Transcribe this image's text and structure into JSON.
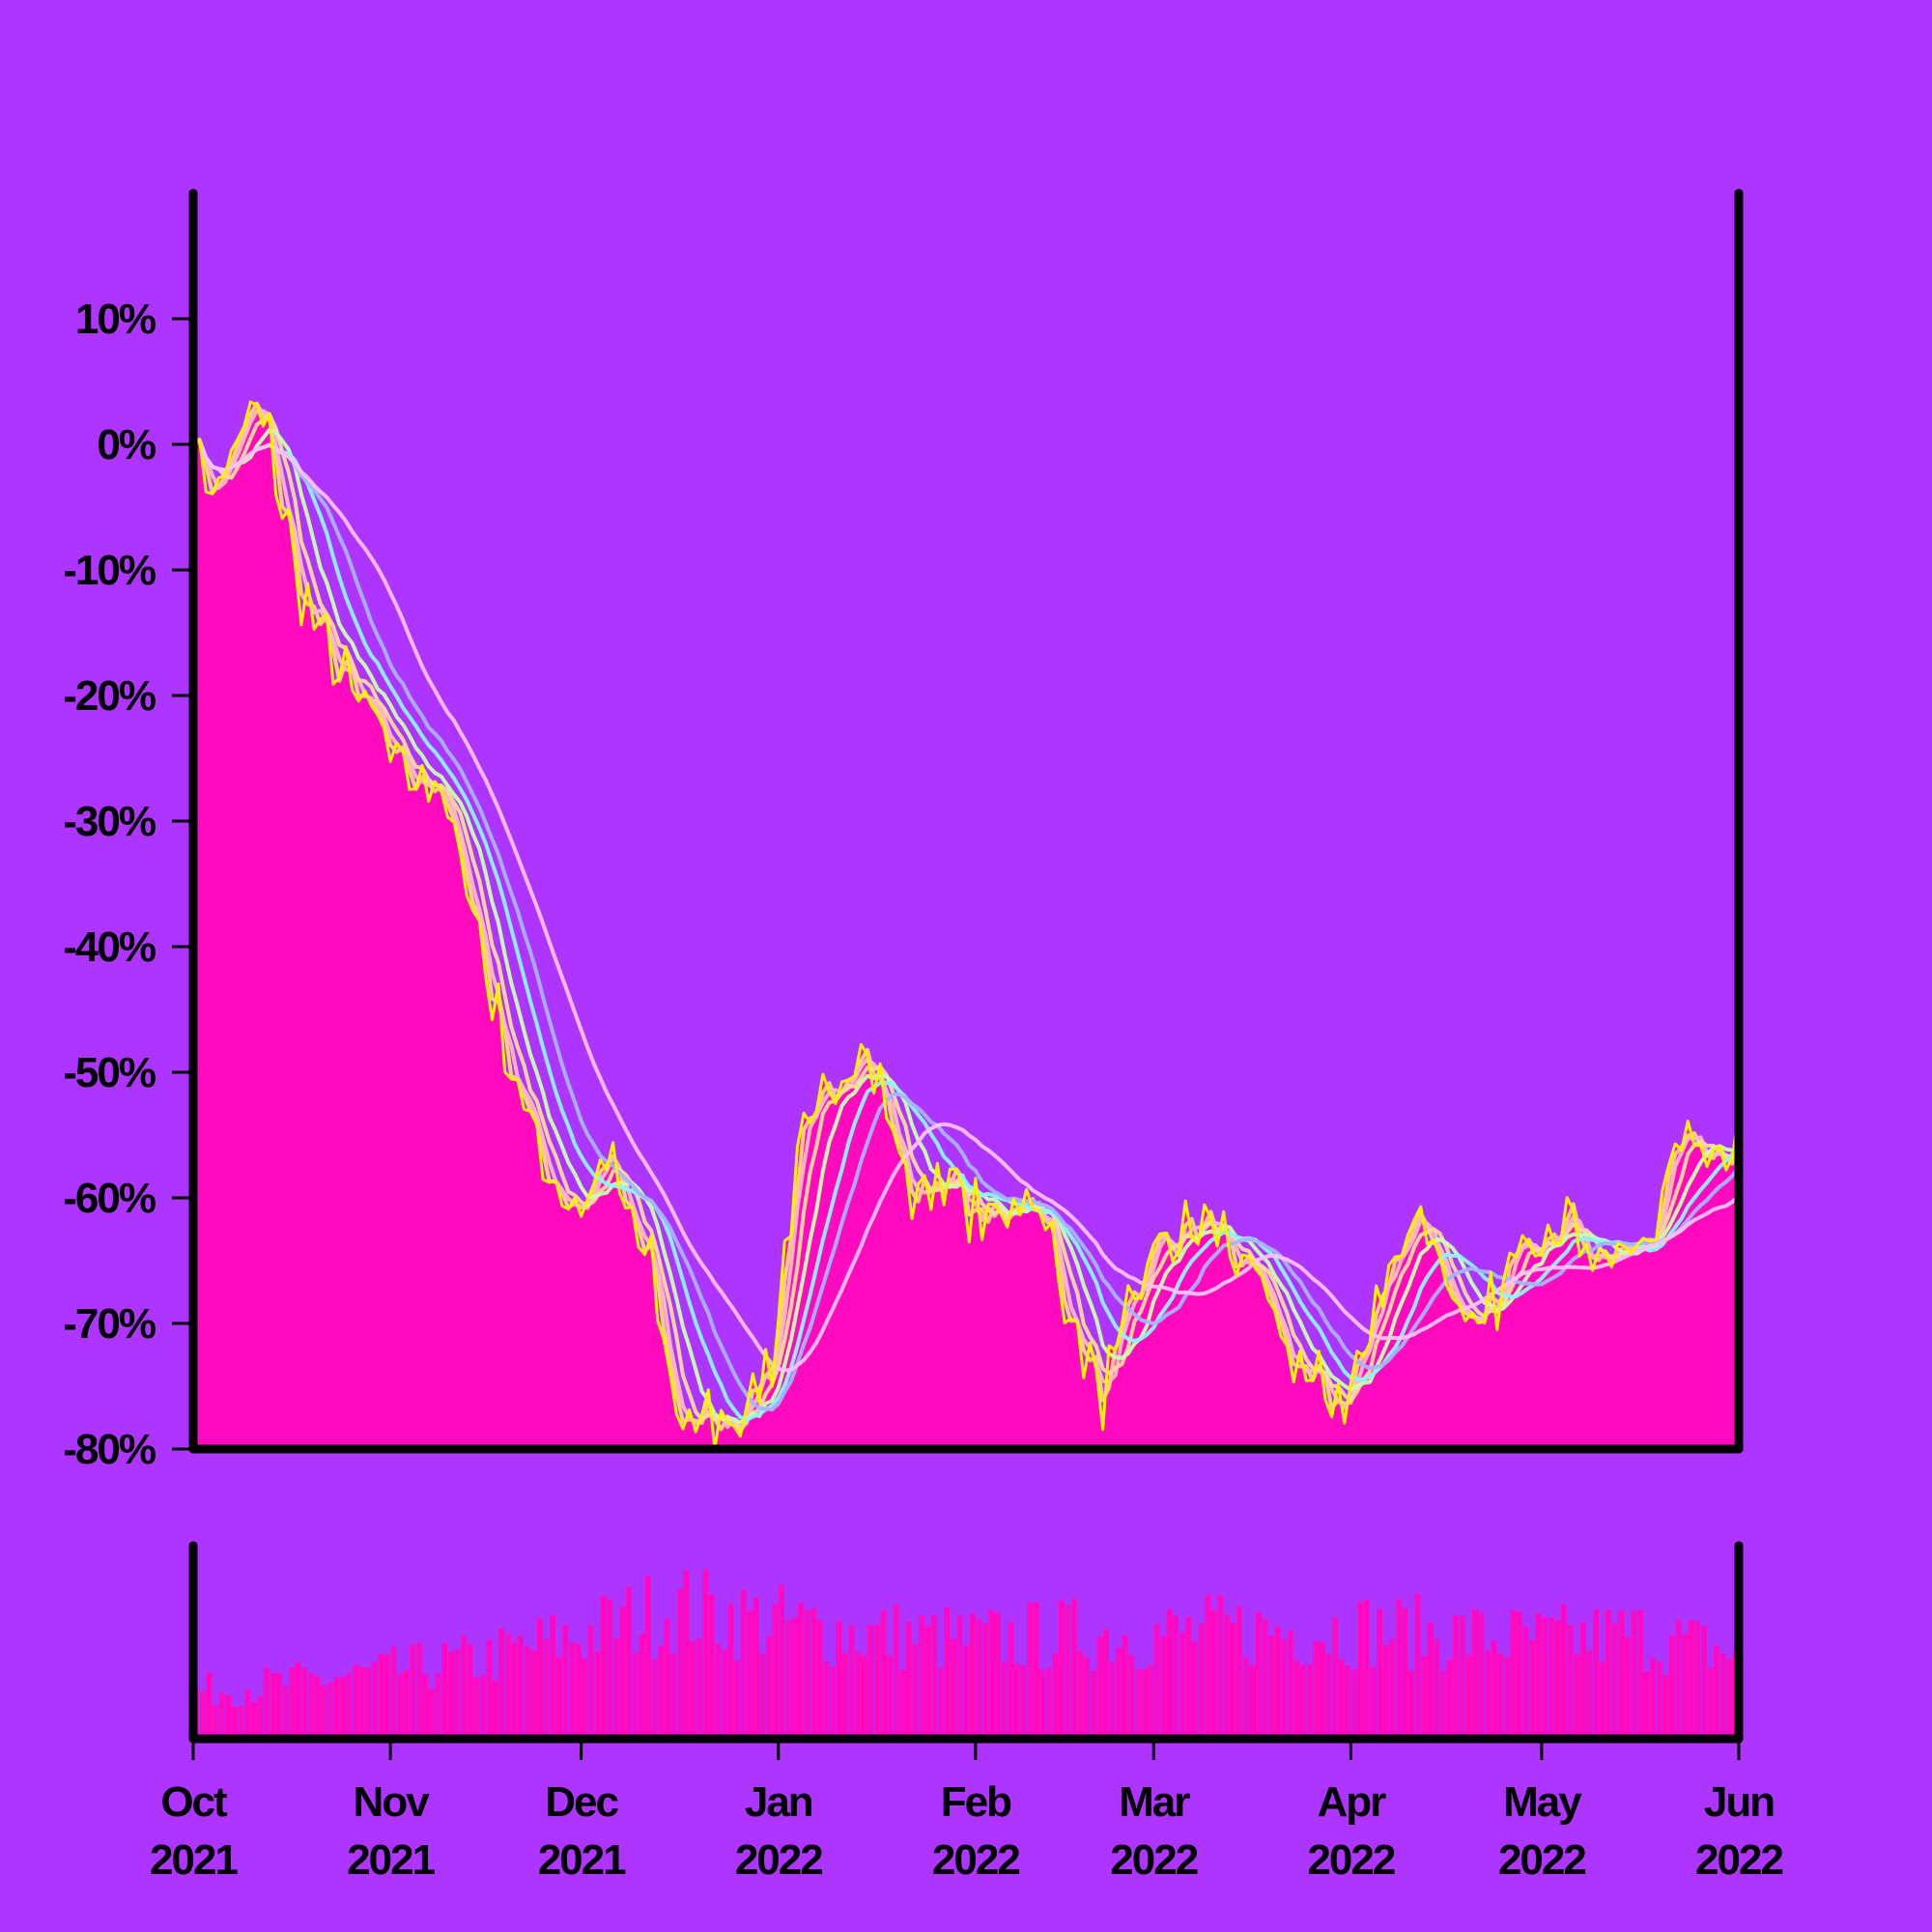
{
  "colors": {
    "background": "#AE34FF",
    "area_fill": "#FF0ABF",
    "volume_fill": "#FF0ABF",
    "axis": "#000000",
    "price_line": "#FFF200"
  },
  "chart_data": [
    {
      "type": "line",
      "title": "",
      "xlabel": "",
      "ylabel": "",
      "x_range": [
        "2021-10-01",
        "2022-06-01"
      ],
      "ylim": [
        -80,
        20
      ],
      "y_ticks": [
        10,
        0,
        -10,
        -20,
        -30,
        -40,
        -50,
        -60,
        -70,
        -80
      ],
      "y_tick_labels": [
        "10%",
        "0%",
        "-10%",
        "-20%",
        "-30%",
        "-40%",
        "-50%",
        "-60%",
        "-70%",
        "-80%"
      ],
      "grid": false,
      "legend": "none",
      "area_under_price": true,
      "price_anchors": [
        [
          "2021-10-01",
          1
        ],
        [
          "2021-10-04",
          -4
        ],
        [
          "2021-10-08",
          0
        ],
        [
          "2021-10-11",
          3
        ],
        [
          "2021-10-13",
          0
        ],
        [
          "2021-10-18",
          -12
        ],
        [
          "2021-10-25",
          -19
        ],
        [
          "2021-11-01",
          -24
        ],
        [
          "2021-11-07",
          -27
        ],
        [
          "2021-11-12",
          -32
        ],
        [
          "2021-11-17",
          -44
        ],
        [
          "2021-11-22",
          -53
        ],
        [
          "2021-11-27",
          -59
        ],
        [
          "2021-12-01",
          -61
        ],
        [
          "2021-12-05",
          -57
        ],
        [
          "2021-12-09",
          -62
        ],
        [
          "2021-12-12",
          -66
        ],
        [
          "2021-12-16",
          -77
        ],
        [
          "2021-12-21",
          -78
        ],
        [
          "2021-12-26",
          -77
        ],
        [
          "2021-12-31",
          -73
        ],
        [
          "2022-01-04",
          -57
        ],
        [
          "2022-01-09",
          -52
        ],
        [
          "2022-01-14",
          -47
        ],
        [
          "2022-01-18",
          -53
        ],
        [
          "2022-01-22",
          -60
        ],
        [
          "2022-01-27",
          -58
        ],
        [
          "2022-01-31",
          -61
        ],
        [
          "2022-02-04",
          -62
        ],
        [
          "2022-02-09",
          -59
        ],
        [
          "2022-02-13",
          -64
        ],
        [
          "2022-02-17",
          -71
        ],
        [
          "2022-02-21",
          -76
        ],
        [
          "2022-02-25",
          -70
        ],
        [
          "2022-03-01",
          -64
        ],
        [
          "2022-03-06",
          -63
        ],
        [
          "2022-03-10",
          -62
        ],
        [
          "2022-03-15",
          -65
        ],
        [
          "2022-03-21",
          -71
        ],
        [
          "2022-03-26",
          -75
        ],
        [
          "2022-03-31",
          -76
        ],
        [
          "2022-04-04",
          -71
        ],
        [
          "2022-04-08",
          -64
        ],
        [
          "2022-04-12",
          -61
        ],
        [
          "2022-04-16",
          -66
        ],
        [
          "2022-04-20",
          -72
        ],
        [
          "2022-04-25",
          -67
        ],
        [
          "2022-04-29",
          -63
        ],
        [
          "2022-05-04",
          -61
        ],
        [
          "2022-05-09",
          -64
        ],
        [
          "2022-05-13",
          -65
        ],
        [
          "2022-05-17",
          -64
        ],
        [
          "2022-05-21",
          -58
        ],
        [
          "2022-05-24",
          -55
        ],
        [
          "2022-05-28",
          -56
        ],
        [
          "2022-06-01",
          -55
        ]
      ],
      "moving_average_colors": [
        "#FFD580",
        "#FFB8C8",
        "#FFDA9E",
        "#C9FFB0",
        "#8CF5FF",
        "#A6B4FF",
        "#FFC2F2"
      ],
      "moving_average_windows": [
        2,
        3,
        5,
        8,
        12,
        16,
        24
      ]
    },
    {
      "type": "bar",
      "title": "",
      "xlabel": "",
      "ylabel": "",
      "x_range": [
        "2021-10-01",
        "2022-06-01"
      ],
      "x_ticks": [
        "2021-10-01",
        "2021-11-01",
        "2021-12-01",
        "2022-01-01",
        "2022-02-01",
        "2022-03-01",
        "2022-04-01",
        "2022-05-01",
        "2022-06-01"
      ],
      "x_tick_labels": [
        {
          "month": "Oct",
          "year": "2021"
        },
        {
          "month": "Nov",
          "year": "2021"
        },
        {
          "month": "Dec",
          "year": "2021"
        },
        {
          "month": "Jan",
          "year": "2022"
        },
        {
          "month": "Feb",
          "year": "2022"
        },
        {
          "month": "Mar",
          "year": "2022"
        },
        {
          "month": "Apr",
          "year": "2022"
        },
        {
          "month": "May",
          "year": "2022"
        },
        {
          "month": "Jun",
          "year": "2022"
        }
      ],
      "volume_level_anchors": [
        [
          "2021-10-01",
          0.28
        ],
        [
          "2021-10-15",
          0.33
        ],
        [
          "2021-11-01",
          0.4
        ],
        [
          "2021-11-15",
          0.47
        ],
        [
          "2021-12-01",
          0.62
        ],
        [
          "2021-12-15",
          0.78
        ],
        [
          "2022-01-01",
          0.68
        ],
        [
          "2022-01-15",
          0.62
        ],
        [
          "2022-02-01",
          0.58
        ],
        [
          "2022-02-15",
          0.62
        ],
        [
          "2022-03-01",
          0.62
        ],
        [
          "2022-03-15",
          0.64
        ],
        [
          "2022-04-01",
          0.65
        ],
        [
          "2022-04-15",
          0.62
        ],
        [
          "2022-05-01",
          0.58
        ],
        [
          "2022-05-15",
          0.62
        ],
        [
          "2022-06-01",
          0.5
        ]
      ]
    }
  ]
}
